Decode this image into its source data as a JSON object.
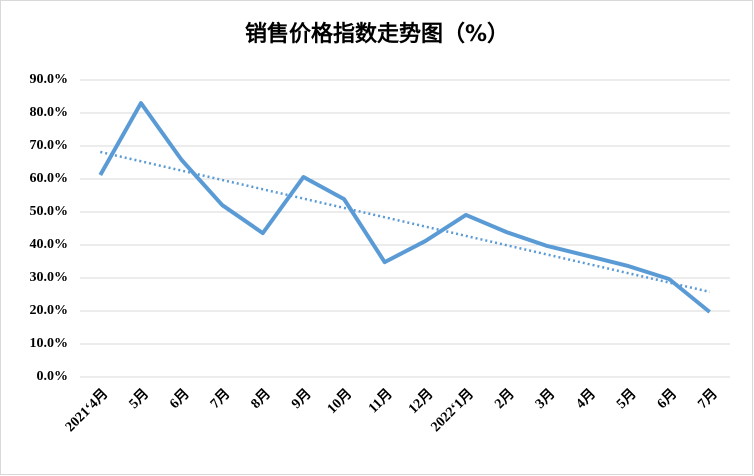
{
  "chart_data": {
    "type": "line",
    "title": "销售价格指数走势图（%）",
    "categories": [
      "2021‘4月",
      "5月",
      "6月",
      "7月",
      "8月",
      "9月",
      "10月",
      "11月",
      "12月",
      "2022‘1月",
      "2月",
      "3月",
      "4月",
      "5月",
      "6月",
      "7月"
    ],
    "series": [
      {
        "color": "#5b9bd5",
        "values": [
          61.2,
          83.0,
          65.8,
          52.1,
          43.6,
          60.6,
          53.9,
          34.8,
          41.2,
          49.1,
          43.9,
          39.7,
          36.7,
          33.6,
          29.7,
          19.7
        ]
      }
    ],
    "trendline": {
      "color": "#5b9bd5",
      "values": [
        68.2,
        25.8
      ]
    },
    "ylim": [
      0,
      90
    ],
    "yticks": [
      {
        "value": 0,
        "label": "0.0%"
      },
      {
        "value": 10,
        "label": "10.0%"
      },
      {
        "value": 20,
        "label": "20.0%"
      },
      {
        "value": 30,
        "label": "30.0%"
      },
      {
        "value": 40,
        "label": "40.0%"
      },
      {
        "value": 50,
        "label": "50.0%"
      },
      {
        "value": 60,
        "label": "60.0%"
      },
      {
        "value": 70,
        "label": "70.0%"
      },
      {
        "value": 80,
        "label": "80.0%"
      },
      {
        "value": 90,
        "label": "90.0%"
      }
    ],
    "grid": true
  }
}
